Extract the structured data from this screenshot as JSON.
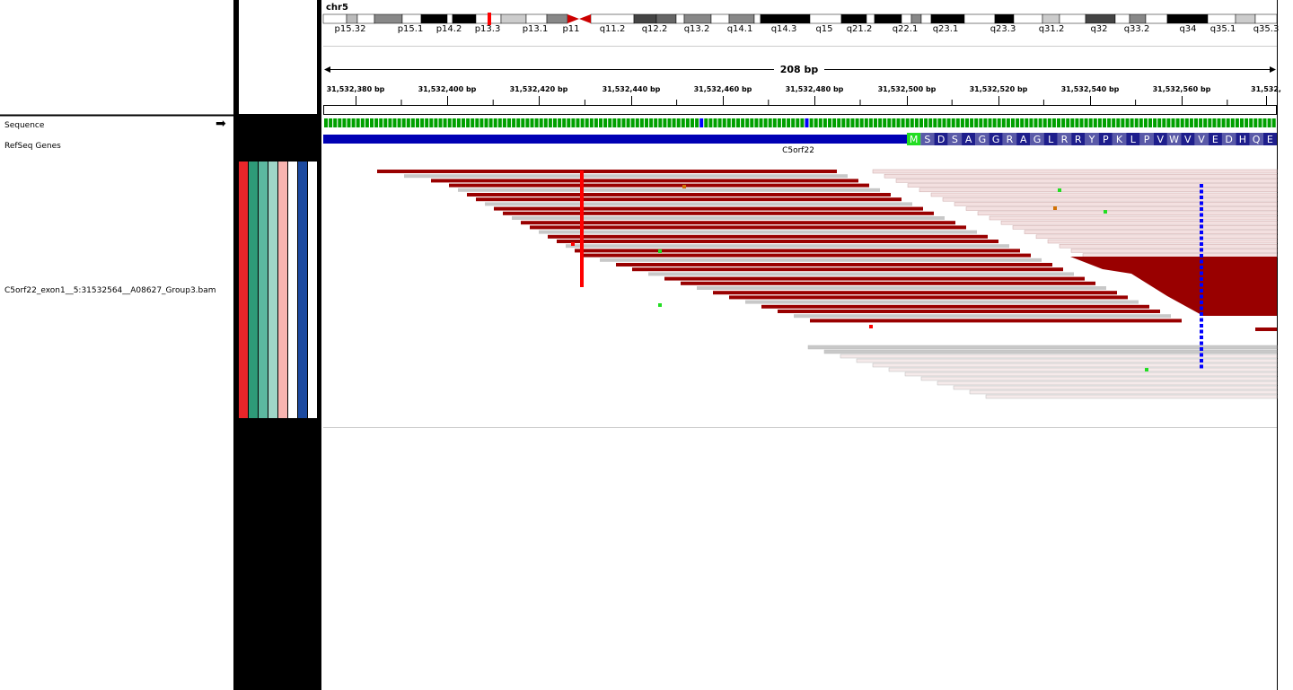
{
  "chromosome": "chr5",
  "cytobands": [
    "p15.32",
    "p15.1",
    "p14.2",
    "p13.3",
    "p13.1",
    "p11",
    "q11.2",
    "q12.2",
    "q13.2",
    "q14.1",
    "q14.3",
    "q15",
    "q21.2",
    "q22.1",
    "q23.1",
    "q23.3",
    "q31.2",
    "q32",
    "q33.2",
    "q34",
    "q35.1",
    "q35.3"
  ],
  "span": "208 bp",
  "ruler": [
    "31,532,380 bp",
    "31,532,400 bp",
    "31,532,420 bp",
    "31,532,440 bp",
    "31,532,460 bp",
    "31,532,480 bp",
    "31,532,500 bp",
    "31,532,520 bp",
    "31,532,540 bp",
    "31,532,560 bp",
    "31,532,"
  ],
  "tracks": [
    "Sequence",
    "RefSeq Genes",
    "C5orf22_exon1__5:31532564__A08627_Group3.bam"
  ],
  "gene": {
    "name": "C5orf22",
    "amino_acids": [
      "M",
      "S",
      "D",
      "S",
      "A",
      "G",
      "G",
      "R",
      "A",
      "G",
      "L",
      "R",
      "R",
      "Y",
      "P",
      "K",
      "L",
      "P",
      "V",
      "W",
      "V",
      "V",
      "E",
      "D",
      "H",
      "Q",
      "E"
    ]
  }
}
